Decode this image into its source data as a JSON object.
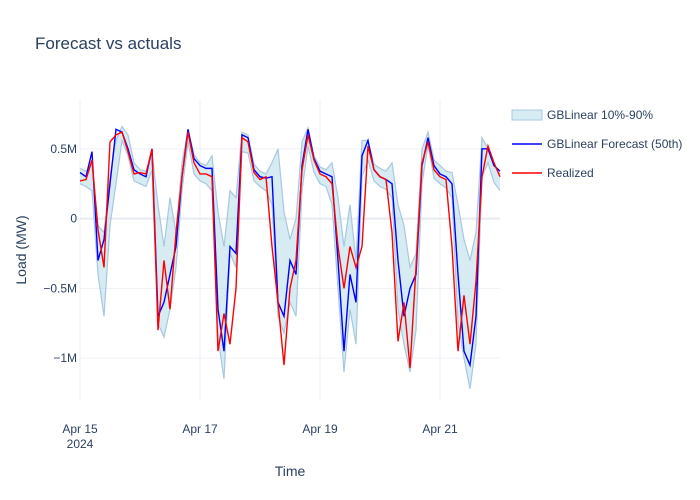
{
  "chart_data": {
    "type": "line",
    "title": "Forecast vs actuals",
    "xlabel": "Time",
    "ylabel": "Load (MW)",
    "x_ticks": [
      "Apr 15\n2024",
      "Apr 17",
      "Apr 19",
      "Apr 21"
    ],
    "x_tick_days": [
      0,
      2,
      4,
      6
    ],
    "y_ticks": [
      "0.5M",
      "0",
      "−0.5M",
      "−1M"
    ],
    "y_tick_values": [
      500000,
      0,
      -500000,
      -1000000
    ],
    "xlim_days": [
      0,
      7.0
    ],
    "ylim": [
      -1300000,
      850000
    ],
    "grid": true,
    "legend_position": "top-right",
    "colors": {
      "band": "#a8c8e0",
      "band_fill": "rgba(173,216,230,0.5)",
      "forecast": "#0000ff",
      "realized": "#ff0000"
    },
    "series": [
      {
        "name": "GBLinear 10%-90%",
        "kind": "band",
        "x_days": [
          0,
          0.1,
          0.2,
          0.3,
          0.4,
          0.5,
          0.6,
          0.7,
          0.8,
          0.9,
          1.0,
          1.1,
          1.2,
          1.3,
          1.4,
          1.5,
          1.6,
          1.7,
          1.8,
          1.9,
          2.0,
          2.1,
          2.2,
          2.3,
          2.4,
          2.5,
          2.6,
          2.7,
          2.8,
          2.9,
          3.0,
          3.1,
          3.2,
          3.3,
          3.4,
          3.5,
          3.6,
          3.7,
          3.8,
          3.9,
          4.0,
          4.1,
          4.2,
          4.3,
          4.4,
          4.5,
          4.6,
          4.7,
          4.8,
          4.9,
          5.0,
          5.1,
          5.2,
          5.3,
          5.4,
          5.5,
          5.6,
          5.7,
          5.8,
          5.9,
          6.0,
          6.1,
          6.2,
          6.3,
          6.4,
          6.5,
          6.6,
          6.7,
          6.8,
          6.9,
          7.0
        ],
        "upper": [
          360000,
          340000,
          380000,
          -50000,
          -100000,
          300000,
          560000,
          660000,
          600000,
          400000,
          350000,
          340000,
          470000,
          100000,
          -200000,
          150000,
          -100000,
          400000,
          640000,
          460000,
          400000,
          380000,
          450000,
          50000,
          -200000,
          200000,
          150000,
          620000,
          600000,
          390000,
          340000,
          320000,
          400000,
          500000,
          50000,
          -150000,
          0,
          550000,
          650000,
          450000,
          370000,
          350000,
          400000,
          150000,
          -200000,
          100000,
          -300000,
          560000,
          560000,
          390000,
          360000,
          340000,
          400000,
          100000,
          -50000,
          -350000,
          -250000,
          500000,
          620000,
          420000,
          380000,
          340000,
          330000,
          100000,
          -150000,
          -300000,
          -100000,
          580000,
          500000,
          380000,
          320000
        ],
        "lower": [
          250000,
          230000,
          200000,
          -400000,
          -700000,
          -50000,
          250000,
          560000,
          450000,
          270000,
          250000,
          230000,
          350000,
          -750000,
          -850000,
          -650000,
          -350000,
          200000,
          550000,
          320000,
          270000,
          250000,
          200000,
          -850000,
          -1150000,
          -250000,
          -350000,
          480000,
          470000,
          270000,
          230000,
          200000,
          100000,
          -700000,
          -820000,
          -600000,
          -700000,
          200000,
          520000,
          330000,
          250000,
          230000,
          100000,
          -500000,
          -1100000,
          -650000,
          -900000,
          300000,
          420000,
          270000,
          230000,
          210000,
          150000,
          -650000,
          -900000,
          -1100000,
          -800000,
          250000,
          530000,
          290000,
          250000,
          220000,
          150000,
          -750000,
          -1000000,
          -1220000,
          -900000,
          300000,
          400000,
          260000,
          200000
        ]
      },
      {
        "name": "GBLinear Forecast (50th)",
        "kind": "line",
        "x_days": [
          0,
          0.1,
          0.2,
          0.3,
          0.4,
          0.5,
          0.6,
          0.7,
          0.8,
          0.9,
          1.0,
          1.1,
          1.2,
          1.3,
          1.4,
          1.5,
          1.6,
          1.7,
          1.8,
          1.9,
          2.0,
          2.1,
          2.2,
          2.3,
          2.4,
          2.5,
          2.6,
          2.7,
          2.8,
          2.9,
          3.0,
          3.1,
          3.2,
          3.3,
          3.4,
          3.5,
          3.6,
          3.7,
          3.8,
          3.9,
          4.0,
          4.1,
          4.2,
          4.3,
          4.4,
          4.5,
          4.6,
          4.7,
          4.8,
          4.9,
          5.0,
          5.1,
          5.2,
          5.3,
          5.4,
          5.5,
          5.6,
          5.7,
          5.8,
          5.9,
          6.0,
          6.1,
          6.2,
          6.3,
          6.4,
          6.5,
          6.6,
          6.7,
          6.8,
          6.9,
          7.0
        ],
        "y": [
          330000,
          300000,
          480000,
          -300000,
          -150000,
          250000,
          640000,
          620000,
          500000,
          350000,
          320000,
          300000,
          500000,
          -700000,
          -600000,
          -400000,
          -200000,
          300000,
          640000,
          430000,
          380000,
          360000,
          360000,
          -650000,
          -950000,
          -200000,
          -250000,
          600000,
          580000,
          350000,
          300000,
          290000,
          300000,
          -600000,
          -700000,
          -300000,
          -400000,
          380000,
          640000,
          430000,
          340000,
          320000,
          300000,
          -300000,
          -950000,
          -400000,
          -600000,
          450000,
          560000,
          350000,
          300000,
          280000,
          250000,
          -300000,
          -700000,
          -500000,
          -400000,
          380000,
          580000,
          380000,
          320000,
          300000,
          250000,
          -400000,
          -950000,
          -1050000,
          -700000,
          500000,
          500000,
          380000,
          340000
        ]
      },
      {
        "name": "Realized",
        "kind": "line",
        "x_days": [
          0,
          0.1,
          0.2,
          0.3,
          0.4,
          0.5,
          0.6,
          0.7,
          0.8,
          0.9,
          1.0,
          1.1,
          1.2,
          1.3,
          1.4,
          1.5,
          1.6,
          1.7,
          1.8,
          1.9,
          2.0,
          2.1,
          2.2,
          2.3,
          2.4,
          2.5,
          2.6,
          2.7,
          2.8,
          2.9,
          3.0,
          3.1,
          3.2,
          3.3,
          3.4,
          3.5,
          3.6,
          3.7,
          3.8,
          3.9,
          4.0,
          4.1,
          4.2,
          4.3,
          4.4,
          4.5,
          4.6,
          4.7,
          4.8,
          4.9,
          5.0,
          5.1,
          5.2,
          5.3,
          5.4,
          5.5,
          5.6,
          5.7,
          5.8,
          5.9,
          6.0,
          6.1,
          6.2,
          6.3,
          6.4,
          6.5,
          6.6,
          6.7,
          6.8,
          6.9,
          7.0
        ],
        "y": [
          270000,
          280000,
          420000,
          -80000,
          -350000,
          550000,
          600000,
          620000,
          480000,
          320000,
          330000,
          320000,
          500000,
          -800000,
          -300000,
          -650000,
          -100000,
          300000,
          620000,
          400000,
          320000,
          320000,
          300000,
          -950000,
          -680000,
          -900000,
          -500000,
          580000,
          550000,
          330000,
          280000,
          300000,
          -200000,
          -600000,
          -1050000,
          -500000,
          -300000,
          350000,
          600000,
          420000,
          320000,
          300000,
          250000,
          -200000,
          -500000,
          -200000,
          -350000,
          -200000,
          520000,
          350000,
          300000,
          280000,
          -100000,
          -880000,
          -600000,
          -1070000,
          -350000,
          400000,
          550000,
          350000,
          300000,
          280000,
          -200000,
          -950000,
          -550000,
          -900000,
          -450000,
          300000,
          520000,
          400000,
          300000
        ]
      }
    ]
  }
}
